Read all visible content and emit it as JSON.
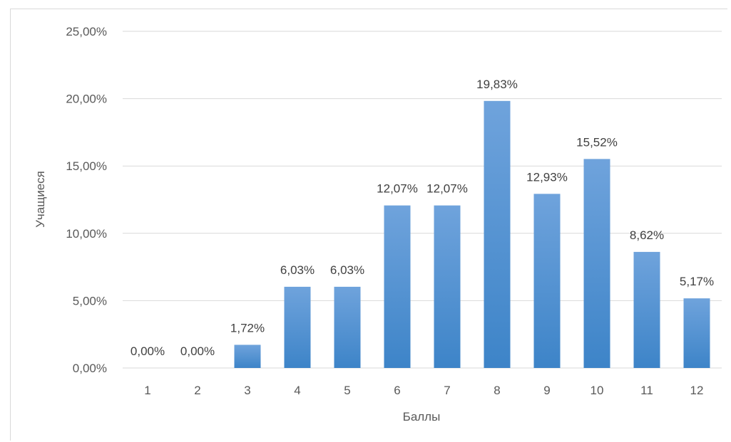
{
  "chart_data": {
    "type": "bar",
    "title": "",
    "xlabel": "Баллы",
    "ylabel": "Учащиеся",
    "categories": [
      "1",
      "2",
      "3",
      "4",
      "5",
      "6",
      "7",
      "8",
      "9",
      "10",
      "11",
      "12"
    ],
    "values": [
      0.0,
      0.0,
      1.72,
      6.03,
      6.03,
      12.07,
      12.07,
      19.83,
      12.93,
      15.52,
      8.62,
      5.17
    ],
    "data_labels": [
      "0,00%",
      "0,00%",
      "1,72%",
      "6,03%",
      "6,03%",
      "12,07%",
      "12,07%",
      "19,83%",
      "12,93%",
      "15,52%",
      "8,62%",
      "5,17%"
    ],
    "yticks": [
      0,
      5,
      10,
      15,
      20,
      25
    ],
    "ytick_labels": [
      "0,00%",
      "5,00%",
      "10,00%",
      "15,00%",
      "20,00%",
      "25,00%"
    ],
    "ylim": [
      0,
      25
    ],
    "grid": true,
    "legend": "none",
    "colors": {
      "bar_top": "#6fa3dc",
      "bar_bottom": "#3d84c8",
      "grid": "#d9d9d9"
    }
  }
}
